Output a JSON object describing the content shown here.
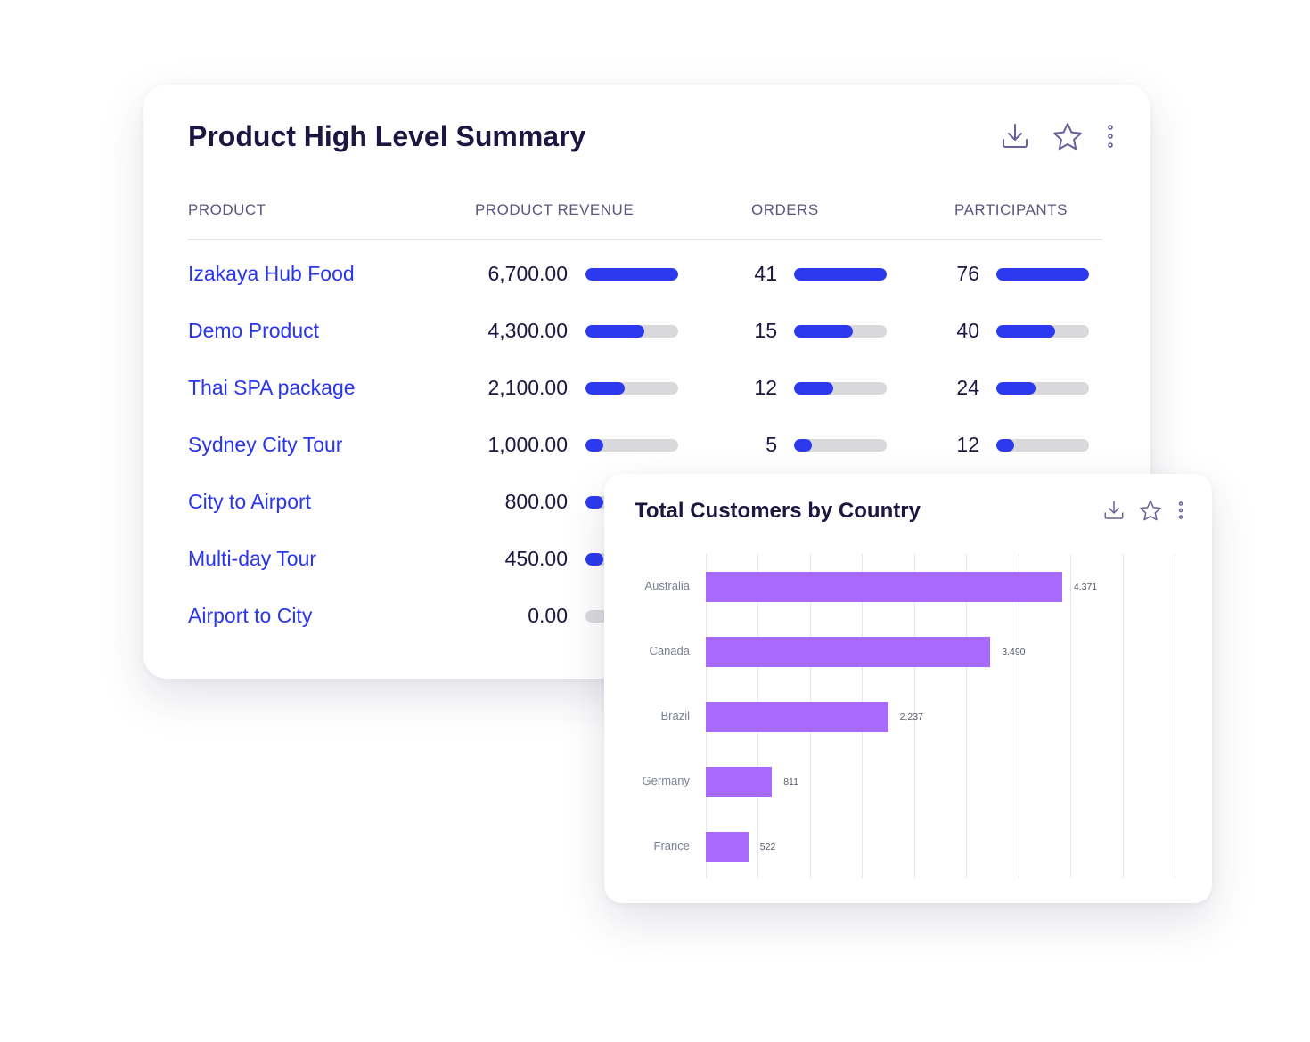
{
  "summary": {
    "title": "Product High Level Summary",
    "icons": [
      "download-icon",
      "star-icon",
      "more-vertical-icon"
    ],
    "headers": {
      "product": "PRODUCT",
      "revenue": "PRODUCT REVENUE",
      "orders": "ORDERS",
      "participants": "PARTICIPANTS"
    },
    "rows": [
      {
        "product": "Izakaya Hub Food",
        "revenue": "6,700.00",
        "revenue_fill": 1.0,
        "orders": "41",
        "orders_fill": 1.0,
        "participants": "76",
        "participants_fill": 1.0
      },
      {
        "product": "Demo Product",
        "revenue": "4,300.00",
        "revenue_fill": 0.63,
        "orders": "15",
        "orders_fill": 0.63,
        "participants": "40",
        "participants_fill": 0.63
      },
      {
        "product": "Thai SPA package",
        "revenue": "2,100.00",
        "revenue_fill": 0.42,
        "orders": "12",
        "orders_fill": 0.42,
        "participants": "24",
        "participants_fill": 0.42
      },
      {
        "product": "Sydney City Tour",
        "revenue": "1,000.00",
        "revenue_fill": 0.19,
        "orders": "5",
        "orders_fill": 0.19,
        "participants": "12",
        "participants_fill": 0.19
      },
      {
        "product": "City to Airport",
        "revenue": "800.00",
        "revenue_fill": 0.19
      },
      {
        "product": "Multi-day Tour",
        "revenue": "450.00",
        "revenue_fill": 0.19
      },
      {
        "product": "Airport to City",
        "revenue": "0.00",
        "revenue_fill": 0
      }
    ],
    "colors": {
      "bar_fill": "#2c39ee",
      "bar_track": "#d9d9dc",
      "link": "#2a35ee"
    }
  },
  "country": {
    "title": "Total Customers by Country",
    "icons": [
      "download-icon",
      "star-icon",
      "more-vertical-icon"
    ]
  },
  "chart_data": {
    "type": "bar",
    "orientation": "horizontal",
    "title": "Total Customers by Country",
    "categories": [
      "Australia",
      "Canada",
      "Brazil",
      "Germany",
      "France"
    ],
    "values": [
      4371,
      3490,
      2237,
      811,
      522
    ],
    "data_labels": [
      "4,371",
      "3,490",
      "2,237",
      "811",
      "522"
    ],
    "xlim": [
      0,
      5750
    ],
    "grid": true,
    "color": "#a86afc"
  }
}
